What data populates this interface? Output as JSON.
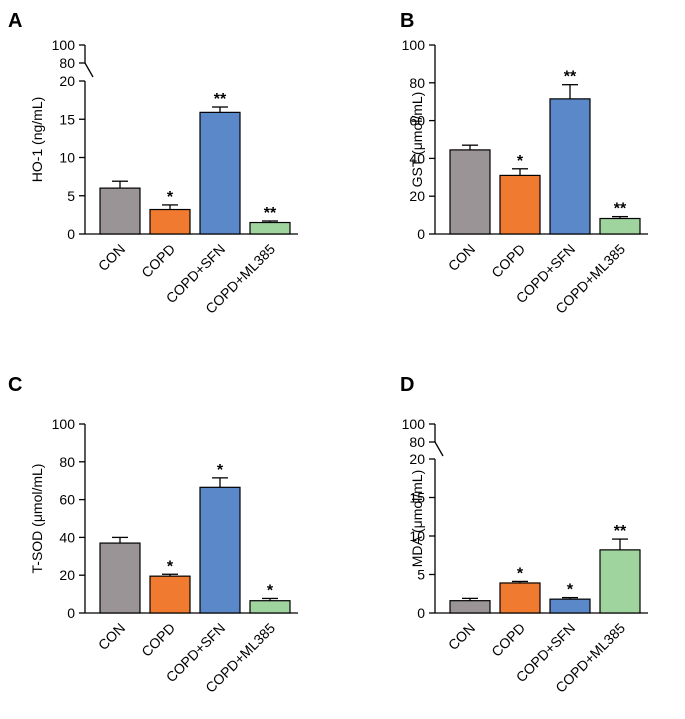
{
  "chart_data": [
    {
      "type": "bar",
      "panel": "A",
      "ylabel": "HO-1 (ng/mL)",
      "categories": [
        "CON",
        "COPD",
        "COPD+SFN",
        "COPD+ML385"
      ],
      "values": [
        6.0,
        3.2,
        15.9,
        1.5
      ],
      "errors": [
        0.9,
        0.6,
        0.7,
        0.2
      ],
      "significance": [
        "",
        "*",
        "**",
        "**"
      ],
      "colors": [
        "#9a9497",
        "#f07b30",
        "#5b88c9",
        "#9fd49f"
      ],
      "y_broken": true,
      "ylim": [
        0,
        20
      ],
      "yticks": [
        0,
        5,
        10,
        15,
        20
      ],
      "upper_yticks": [
        80,
        100
      ]
    },
    {
      "type": "bar",
      "panel": "B",
      "ylabel": "GST (μmol/mL)",
      "categories": [
        "CON",
        "COPD",
        "COPD+SFN",
        "COPD+ML385"
      ],
      "values": [
        44.5,
        31,
        71.5,
        8.2
      ],
      "errors": [
        2.5,
        3.5,
        7.5,
        1.0
      ],
      "significance": [
        "",
        "*",
        "**",
        "**"
      ],
      "colors": [
        "#9a9497",
        "#f07b30",
        "#5b88c9",
        "#9fd49f"
      ],
      "y_broken": false,
      "ylim": [
        0,
        100
      ],
      "yticks": [
        0,
        20,
        40,
        60,
        80,
        100
      ]
    },
    {
      "type": "bar",
      "panel": "C",
      "ylabel": "T-SOD (μmol/mL)",
      "categories": [
        "CON",
        "COPD",
        "COPD+SFN",
        "COPD+ML385"
      ],
      "values": [
        37,
        19.5,
        66.5,
        6.5
      ],
      "errors": [
        3.0,
        1.0,
        5.0,
        1.2
      ],
      "significance": [
        "",
        "*",
        "*",
        "*"
      ],
      "colors": [
        "#9a9497",
        "#f07b30",
        "#5b88c9",
        "#9fd49f"
      ],
      "y_broken": false,
      "ylim": [
        0,
        100
      ],
      "yticks": [
        0,
        20,
        40,
        60,
        80,
        100
      ]
    },
    {
      "type": "bar",
      "panel": "D",
      "ylabel": "MDA (μmol/mL)",
      "categories": [
        "CON",
        "COPD",
        "COPD+SFN",
        "COPD+ML385"
      ],
      "values": [
        1.6,
        3.9,
        1.8,
        8.2
      ],
      "errors": [
        0.3,
        0.2,
        0.2,
        1.4
      ],
      "significance": [
        "",
        "*",
        "*",
        "**"
      ],
      "colors": [
        "#9a9497",
        "#f07b30",
        "#5b88c9",
        "#9fd49f"
      ],
      "y_broken": true,
      "ylim": [
        0,
        20
      ],
      "yticks": [
        0,
        5,
        10,
        15,
        20
      ],
      "upper_yticks": [
        80,
        100
      ]
    }
  ]
}
